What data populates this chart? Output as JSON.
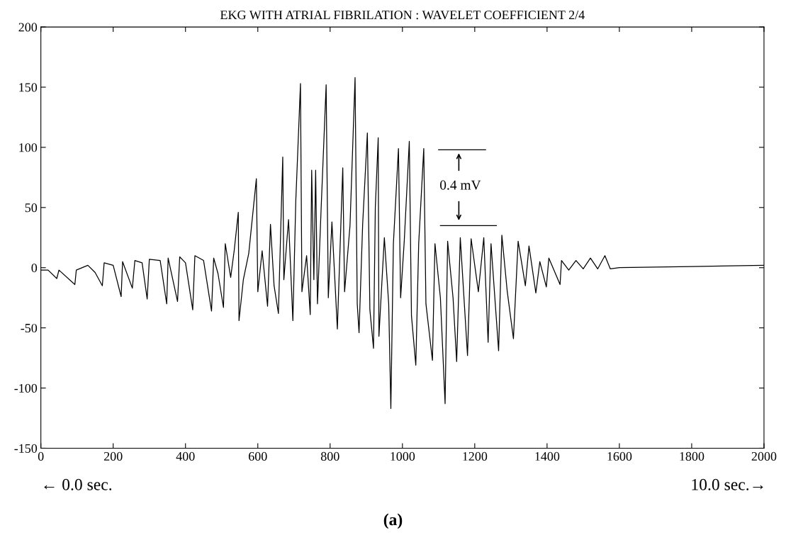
{
  "chart_data": {
    "type": "line",
    "title": "EKG WITH ATRIAL FIBRILATION : WAVELET COEFFICIENT 2/4",
    "x": [
      0,
      20,
      44,
      50,
      94,
      98,
      130,
      150,
      170,
      175,
      200,
      222,
      226,
      253,
      260,
      280,
      294,
      300,
      330,
      348,
      352,
      378,
      384,
      400,
      420,
      426,
      450,
      472,
      478,
      490,
      505,
      510,
      525,
      535,
      546,
      548,
      560,
      575,
      596,
      600,
      612,
      627,
      635,
      645,
      657,
      669,
      672,
      685,
      697,
      705,
      718,
      722,
      735,
      745,
      749,
      755,
      760,
      765,
      775,
      789,
      795,
      805,
      820,
      835,
      840,
      855,
      869,
      875,
      880,
      890,
      903,
      910,
      920,
      925,
      933,
      935,
      950,
      962,
      968,
      975,
      989,
      995,
      1005,
      1019,
      1025,
      1037,
      1045,
      1059,
      1065,
      1083,
      1090,
      1105,
      1118,
      1125,
      1140,
      1150,
      1160,
      1180,
      1190,
      1210,
      1225,
      1237,
      1245,
      1266,
      1275,
      1290,
      1307,
      1320,
      1340,
      1350,
      1369,
      1380,
      1398,
      1405,
      1436,
      1440,
      1460,
      1480,
      1500,
      1520,
      1540,
      1560,
      1575,
      1600,
      1800,
      2000
    ],
    "series": [
      {
        "color": "#000000",
        "values": [
          -2,
          -2,
          -9,
          -2,
          -14,
          -2,
          2,
          -4,
          -15,
          4,
          2,
          -24,
          5,
          -17,
          6,
          4,
          -26,
          7,
          6,
          -30,
          8,
          -28,
          9,
          4,
          -35,
          10,
          6,
          -36,
          8,
          -5,
          -33,
          20,
          -8,
          15,
          46,
          -44,
          -10,
          12,
          74,
          -20,
          14,
          -32,
          36,
          -15,
          -38,
          92,
          -10,
          40,
          -44,
          55,
          153,
          -20,
          10,
          -39,
          81,
          -10,
          81,
          -30,
          48,
          152,
          -25,
          38,
          -51,
          83,
          -20,
          35,
          158,
          -30,
          -54,
          36,
          112,
          -35,
          -67,
          50,
          108,
          -57,
          25,
          -30,
          -117,
          20,
          99,
          -25,
          22,
          105,
          -40,
          -81,
          20,
          99,
          -30,
          -77,
          20,
          -25,
          -113,
          22,
          -25,
          -78,
          25,
          -73,
          24,
          -20,
          25,
          -62,
          20,
          -69,
          27,
          -20,
          -59,
          22,
          -15,
          18,
          -21,
          5,
          -16,
          8,
          -14,
          6,
          -2,
          6,
          -1,
          8,
          -1,
          10,
          -1,
          0,
          1,
          2
        ]
      },
      {
        "type": "line",
        "color": "#000000",
        "x": [
          1100,
          1230
        ],
        "values": [
          98,
          98
        ]
      },
      {
        "type": "line",
        "color": "#000000",
        "x": [
          1105,
          1260
        ],
        "values": [
          35,
          35
        ]
      }
    ],
    "xlim": [
      0,
      2000
    ],
    "xticks": [
      0,
      200,
      400,
      600,
      800,
      1000,
      1200,
      1400,
      1600,
      1800,
      2000
    ],
    "ylim": [
      -150,
      200
    ],
    "yticks": [
      {
        "value": -150,
        "label": "-150"
      },
      {
        "value": -100,
        "label": "-100"
      },
      {
        "value": -50,
        "label": "-50"
      },
      0,
      50,
      100,
      150,
      200
    ],
    "annotations": [
      "0.4 mV",
      "← 0.0 sec.",
      "10.0 sec.→",
      "(a)"
    ],
    "line_style": "solid",
    "marker": "none",
    "grid": false,
    "legend": false
  }
}
